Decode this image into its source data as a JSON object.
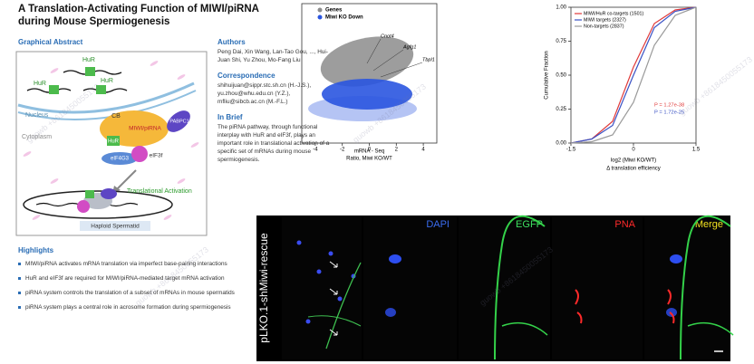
{
  "header": {
    "title": "A Translation-Activating Function of MIWI/piRNA during Mouse Spermiogenesis"
  },
  "graphical_abstract": {
    "heading": "Graphical Abstract",
    "labels": [
      "HuR",
      "HuR",
      "HuR",
      "Nucleus",
      "Cytoplasm",
      "CB",
      "MIWI/piRNA",
      "HuR",
      "eIF4G3",
      "eIF3f",
      "PABPC1",
      "Translational Activation",
      "Haploid Spermatid"
    ]
  },
  "authors": {
    "heading": "Authors",
    "text": "Peng Dai, Xin Wang, Lan-Tao Gou, ..., Hui-Juan Shi, Yu Zhou, Mo-Fang Liu"
  },
  "correspondence": {
    "heading": "Correspondence",
    "lines": [
      "shihuijuan@sippr.stc.sh.cn (H.-J.S.),",
      "yu.zhou@whu.edu.cn (Y.Z.),",
      "mfliu@sibcb.ac.cn (M.-F.L.)"
    ]
  },
  "in_brief": {
    "heading": "In Brief",
    "text": "The piRNA pathway, through functional interplay with HuR and eIF3f, plays an important role in translational activation of a specific set of mRNAs during mouse spermiogenesis."
  },
  "highlights": {
    "heading": "Highlights",
    "items": [
      "MIWI/piRNA activates mRNA translation via imperfect base-pairing interactions",
      "HuR and eIF3f are required for MIWI/piRNA-mediated target mRNA activation",
      "piRNA system controls the translation of a subset of mRNAs in mouse spermatids",
      "piRNA system plays a central role in acrosome formation during spermiogenesis"
    ]
  },
  "chart_data": [
    {
      "type": "scatter",
      "x_label": [
        "mRNA - Seq",
        "Ratio, Miwi KO/WT"
      ],
      "xlim": [
        -5,
        5
      ],
      "xticks": [
        -4,
        -2,
        0,
        2,
        4
      ],
      "series": [
        {
          "name": "Genes",
          "color": "#8c8c8c"
        },
        {
          "name": "Miwi KO Down",
          "color": "#2a55e0"
        }
      ],
      "annotations": [
        "Cnot4",
        "Agfg1",
        "Tbpl1"
      ]
    },
    {
      "type": "line",
      "y_label": "Cumulative Fraction",
      "x_label": [
        "log2 (Miwi KO/WT)",
        "Δ translation efficiency"
      ],
      "x": [
        -1.5,
        -1,
        -0.5,
        0,
        0.5,
        1,
        1.5
      ],
      "xlim": [
        -1.5,
        1.5
      ],
      "xticks": [
        -1.5,
        0,
        1.5
      ],
      "ylim": [
        0,
        1
      ],
      "yticks": [
        {
          "value": 0,
          "label": "0.00"
        },
        {
          "value": 0.25,
          "label": "0.25"
        },
        {
          "value": 0.5,
          "label": "0.50"
        },
        {
          "value": 0.75,
          "label": "0.75"
        },
        {
          "value": 1,
          "label": "1.00"
        }
      ],
      "series": [
        {
          "name": "MIWI/HuR co-targets (1501)",
          "color": "#e03a3a",
          "values": [
            0,
            0.03,
            0.16,
            0.56,
            0.88,
            0.98,
            1
          ]
        },
        {
          "name": "MIWI targets (2327)",
          "color": "#3a52c4",
          "values": [
            0,
            0.03,
            0.13,
            0.5,
            0.85,
            0.97,
            1
          ]
        },
        {
          "name": "Non-targets (2837)",
          "color": "#9a9a9a",
          "values": [
            0,
            0.01,
            0.06,
            0.3,
            0.72,
            0.94,
            1
          ]
        }
      ],
      "legend": "upper left",
      "annotations": [
        {
          "text": "P = 1.27e-38",
          "color": "#e03a3a"
        },
        {
          "text": "P = 1.72e-25",
          "color": "#3a52c4"
        }
      ]
    }
  ],
  "microscopy": {
    "row_label": "pLKO.1-shMiwi-rescue",
    "channels": [
      "DAPI",
      "EGFP",
      "PNA",
      "Merge"
    ],
    "channel_colors": [
      "#3a6cf0",
      "#3ee060",
      "#ff2a2a",
      "#f0e020"
    ]
  },
  "watermark": "guowb +8618450055173"
}
